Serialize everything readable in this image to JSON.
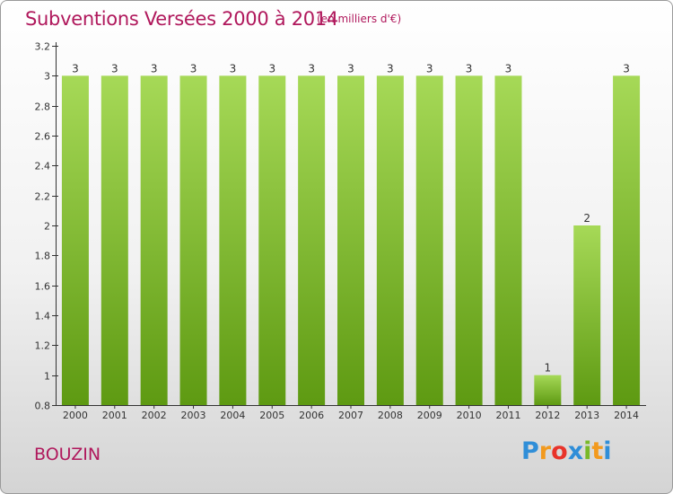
{
  "header": {
    "title": "Subventions Versées 2000 à 2014",
    "subtitle": "(en milliers d'€)"
  },
  "footer": {
    "commune": "BOUZIN",
    "logo": {
      "letters": [
        "P",
        "r",
        "o",
        "x",
        "i",
        "t",
        "i"
      ],
      "colors": [
        "#2f8ed8",
        "#f29a1e",
        "#e8332a",
        "#2f8ed8",
        "#79b928",
        "#f29a1e",
        "#2f8ed8"
      ]
    }
  },
  "colors": {
    "bar_top": "#a6d957",
    "bar_bottom": "#5e9a12",
    "axis": "#333333",
    "text": "#333333"
  },
  "chart_data": {
    "type": "bar",
    "categories": [
      "2000",
      "2001",
      "2002",
      "2003",
      "2004",
      "2005",
      "2006",
      "2007",
      "2008",
      "2009",
      "2010",
      "2011",
      "2012",
      "2013",
      "2014"
    ],
    "values": [
      3,
      3,
      3,
      3,
      3,
      3,
      3,
      3,
      3,
      3,
      3,
      3,
      1,
      2,
      3
    ],
    "data_labels": [
      "3",
      "3",
      "3",
      "3",
      "3",
      "3",
      "3",
      "3",
      "3",
      "3",
      "3",
      "3",
      "1",
      "2",
      "3"
    ],
    "title": "Subventions Versées 2000 à 2014",
    "subtitle": "(en milliers d'€)",
    "xlabel": "",
    "ylabel": "",
    "ylim": [
      0.8,
      3.2
    ],
    "yticks": [
      0.8,
      1,
      1.2,
      1.4,
      1.6,
      1.8,
      2,
      2.2,
      2.4,
      2.6,
      2.8,
      3,
      3.2
    ],
    "ytick_labels": [
      "0.8",
      "1",
      "1.2",
      "1.4",
      "1.6",
      "1.8",
      "2",
      "2.2",
      "2.4",
      "2.6",
      "2.8",
      "3",
      "3.2"
    ],
    "grid": false,
    "legend": "none"
  }
}
